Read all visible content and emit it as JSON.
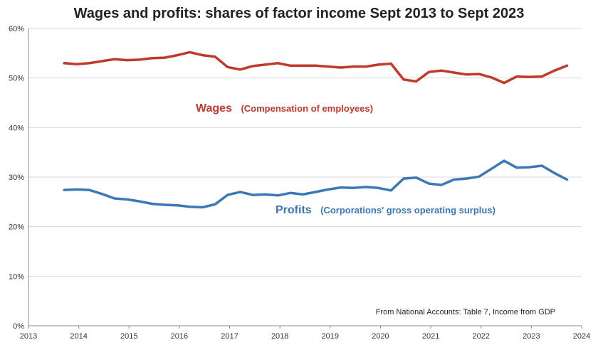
{
  "title": "Wages and profits: shares of factor income Sept 2013 to Sept 2023",
  "source_note": "From National Accounts: Table 7, Income from GDP",
  "colors": {
    "wages": "#c0392b",
    "profits": "#3a78b8",
    "grid": "#d9d9d9",
    "axis": "#888888"
  },
  "chart_data": {
    "type": "line",
    "xlim": [
      2013,
      2024
    ],
    "ylim": [
      0,
      60
    ],
    "x_ticks": [
      "2013",
      "2014",
      "2015",
      "2016",
      "2017",
      "2018",
      "2019",
      "2020",
      "2021",
      "2022",
      "2023",
      "2024"
    ],
    "y_ticks": [
      "0%",
      "10%",
      "20%",
      "30%",
      "40%",
      "50%",
      "60%"
    ],
    "grid": "horizontal",
    "series": [
      {
        "name": "Wages",
        "detail": "(Compensation of employees)",
        "points": [
          [
            2013.71,
            53.0
          ],
          [
            2013.96,
            52.8
          ],
          [
            2014.21,
            53.0
          ],
          [
            2014.46,
            53.4
          ],
          [
            2014.71,
            53.8
          ],
          [
            2014.96,
            53.6
          ],
          [
            2015.21,
            53.7
          ],
          [
            2015.46,
            54.0
          ],
          [
            2015.71,
            54.1
          ],
          [
            2015.96,
            54.6
          ],
          [
            2016.21,
            55.2
          ],
          [
            2016.46,
            54.6
          ],
          [
            2016.71,
            54.3
          ],
          [
            2016.96,
            52.2
          ],
          [
            2017.21,
            51.7
          ],
          [
            2017.46,
            52.4
          ],
          [
            2017.71,
            52.7
          ],
          [
            2017.96,
            53.0
          ],
          [
            2018.21,
            52.5
          ],
          [
            2018.46,
            52.5
          ],
          [
            2018.71,
            52.5
          ],
          [
            2018.96,
            52.3
          ],
          [
            2019.21,
            52.1
          ],
          [
            2019.46,
            52.3
          ],
          [
            2019.71,
            52.3
          ],
          [
            2019.96,
            52.7
          ],
          [
            2020.21,
            52.9
          ],
          [
            2020.46,
            49.7
          ],
          [
            2020.71,
            49.3
          ],
          [
            2020.96,
            51.2
          ],
          [
            2021.21,
            51.5
          ],
          [
            2021.46,
            51.1
          ],
          [
            2021.71,
            50.7
          ],
          [
            2021.96,
            50.8
          ],
          [
            2022.21,
            50.1
          ],
          [
            2022.46,
            49.0
          ],
          [
            2022.71,
            50.3
          ],
          [
            2022.96,
            50.2
          ],
          [
            2023.21,
            50.3
          ],
          [
            2023.46,
            51.5
          ],
          [
            2023.71,
            52.5
          ]
        ]
      },
      {
        "name": "Profits",
        "detail": "(Corporations' gross operating surplus)",
        "points": [
          [
            2013.71,
            27.4
          ],
          [
            2013.96,
            27.5
          ],
          [
            2014.21,
            27.4
          ],
          [
            2014.46,
            26.6
          ],
          [
            2014.71,
            25.7
          ],
          [
            2014.96,
            25.5
          ],
          [
            2015.21,
            25.1
          ],
          [
            2015.46,
            24.6
          ],
          [
            2015.71,
            24.4
          ],
          [
            2015.96,
            24.3
          ],
          [
            2016.21,
            24.0
          ],
          [
            2016.46,
            23.9
          ],
          [
            2016.71,
            24.5
          ],
          [
            2016.96,
            26.4
          ],
          [
            2017.21,
            27.0
          ],
          [
            2017.46,
            26.4
          ],
          [
            2017.71,
            26.5
          ],
          [
            2017.96,
            26.3
          ],
          [
            2018.21,
            26.8
          ],
          [
            2018.46,
            26.5
          ],
          [
            2018.71,
            27.0
          ],
          [
            2018.96,
            27.5
          ],
          [
            2019.21,
            27.9
          ],
          [
            2019.46,
            27.8
          ],
          [
            2019.71,
            28.0
          ],
          [
            2019.96,
            27.8
          ],
          [
            2020.21,
            27.3
          ],
          [
            2020.46,
            29.7
          ],
          [
            2020.71,
            29.9
          ],
          [
            2020.96,
            28.7
          ],
          [
            2021.21,
            28.4
          ],
          [
            2021.46,
            29.5
          ],
          [
            2021.71,
            29.7
          ],
          [
            2021.96,
            30.1
          ],
          [
            2022.21,
            31.7
          ],
          [
            2022.46,
            33.3
          ],
          [
            2022.71,
            31.9
          ],
          [
            2022.96,
            32.0
          ],
          [
            2023.21,
            32.3
          ],
          [
            2023.46,
            30.8
          ],
          [
            2023.71,
            29.5
          ]
        ]
      }
    ]
  }
}
